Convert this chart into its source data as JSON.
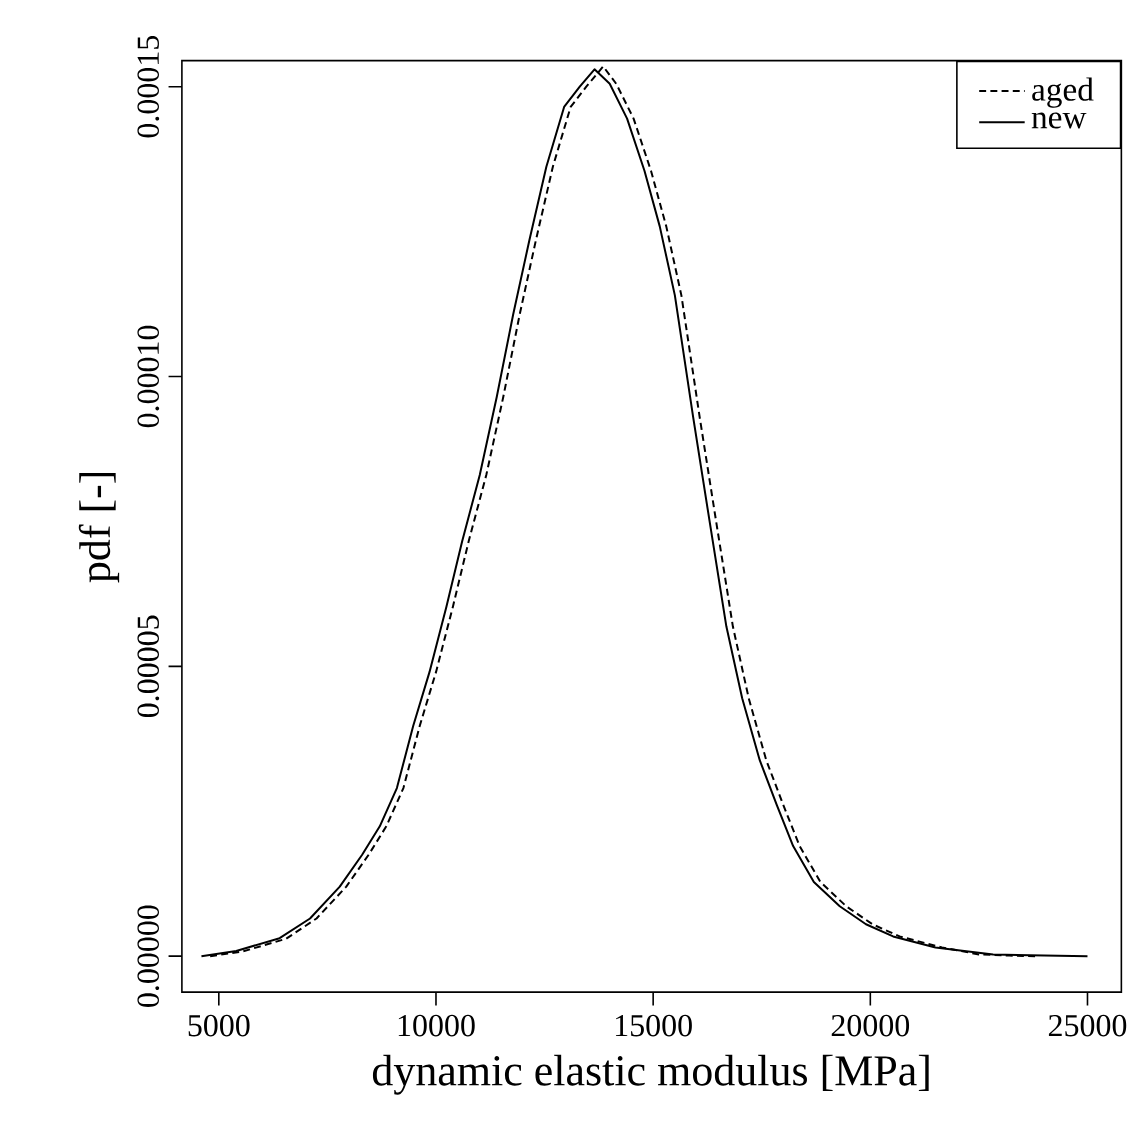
{
  "chart_data": {
    "type": "line",
    "xlabel": "dynamic elastic modulus [MPa]",
    "ylabel": "pdf [-]",
    "xlim": [
      4150,
      25780
    ],
    "ylim": [
      -6.2e-06,
      0.0001545
    ],
    "xticks": [
      5000,
      10000,
      15000,
      20000,
      25000
    ],
    "yticks": [
      {
        "value": 0,
        "label": "0.00000"
      },
      {
        "value": 5e-05,
        "label": "0.00005"
      },
      {
        "value": 0.0001,
        "label": "0.00010"
      },
      {
        "value": 0.00015,
        "label": "0.00015"
      }
    ],
    "legend": "top right",
    "grid": false,
    "marker": "none",
    "series": [
      {
        "name": "aged",
        "color": "#000000",
        "line_style": "dashed",
        "x": [
          4800,
          5550,
          6550,
          7250,
          7935,
          8450,
          8856,
          9250,
          9625,
          10000,
          10390,
          10750,
          11158,
          11550,
          11927,
          12300,
          12691,
          13100,
          13460,
          13850,
          14150,
          14550,
          14950,
          15302,
          15650,
          16071,
          16450,
          16835,
          17200,
          17604,
          18000,
          18373,
          18850,
          19446,
          20050,
          20675,
          21650,
          22500,
          23200,
          23800
        ],
        "values": [
          0,
          8e-07,
          3e-06,
          6.5e-06,
          1.2e-05,
          1.75e-05,
          2.24e-05,
          2.9e-05,
          3.97e-05,
          4.9e-05,
          6.03e-05,
          7.15e-05,
          8.3e-05,
          9.65e-05,
          0.0001107,
          0.0001235,
          0.0001362,
          0.0001465,
          0.00015,
          0.0001535,
          0.0001505,
          0.0001445,
          0.0001355,
          0.0001259,
          0.000114,
          9.3e-05,
          7.5e-05,
          5.69e-05,
          4.45e-05,
          3.38e-05,
          2.6e-05,
          1.9e-05,
          1.28e-05,
          8.6e-06,
          5.5e-06,
          3.4e-06,
          1.5e-06,
          3e-07,
          1e-07,
          0
        ]
      },
      {
        "name": "new",
        "color": "#000000",
        "line_style": "solid",
        "x": [
          4600,
          5400,
          6400,
          7100,
          7785,
          8300,
          8706,
          9100,
          9475,
          9850,
          10240,
          10600,
          11008,
          11400,
          11777,
          12150,
          12541,
          12950,
          13310,
          13650,
          14000,
          14400,
          14800,
          15152,
          15500,
          15921,
          16300,
          16685,
          17050,
          17454,
          17850,
          18223,
          18700,
          19296,
          19900,
          20525,
          21500,
          22827,
          24000,
          25000
        ],
        "values": [
          0,
          9e-07,
          3.1e-06,
          6.5e-06,
          1.2e-05,
          1.75e-05,
          2.24e-05,
          2.9e-05,
          3.97e-05,
          4.9e-05,
          6.03e-05,
          7.15e-05,
          8.3e-05,
          9.65e-05,
          0.0001107,
          0.0001235,
          0.0001362,
          0.0001465,
          0.00015,
          0.000153,
          0.0001505,
          0.0001445,
          0.0001355,
          0.0001259,
          0.000114,
          9.3e-05,
          7.5e-05,
          5.69e-05,
          4.45e-05,
          3.38e-05,
          2.6e-05,
          1.9e-05,
          1.28e-05,
          8.6e-06,
          5.5e-06,
          3.4e-06,
          1.5e-06,
          3e-07,
          1e-07,
          0
        ]
      }
    ]
  }
}
